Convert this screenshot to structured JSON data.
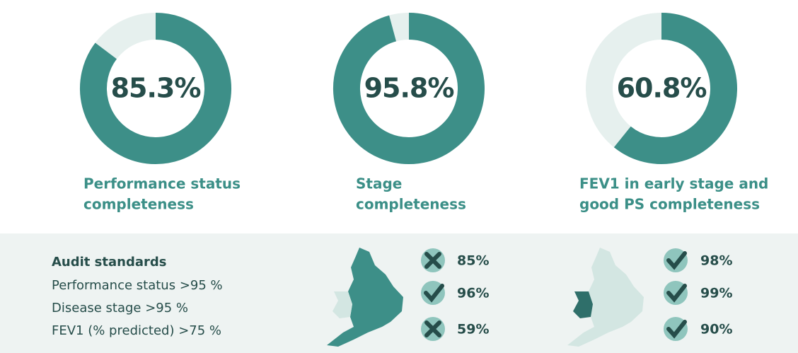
{
  "donuts": [
    {
      "value": 85.3,
      "value_label": "85.3%",
      "label_lines": [
        "Performance status",
        "completeness"
      ]
    },
    {
      "value": 95.8,
      "value_label": "95.8%",
      "label_lines": [
        "Stage",
        "completeness"
      ]
    },
    {
      "value": 60.8,
      "value_label": "60.8%",
      "label_lines": [
        "FEV1 in early stage and",
        "good PS completeness"
      ]
    }
  ],
  "standards": {
    "title": "Audit standards",
    "items": [
      "Performance status >95 %",
      "Disease stage >95 %",
      "FEV1 (% predicted) >75 %"
    ]
  },
  "england": [
    {
      "value_label": "85%",
      "met": false
    },
    {
      "value_label": "96%",
      "met": true
    },
    {
      "value_label": "59%",
      "met": false
    }
  ],
  "wales": [
    {
      "value_label": "98%",
      "met": true
    },
    {
      "value_label": "99%",
      "met": true
    },
    {
      "value_label": "90%",
      "met": true
    }
  ]
}
